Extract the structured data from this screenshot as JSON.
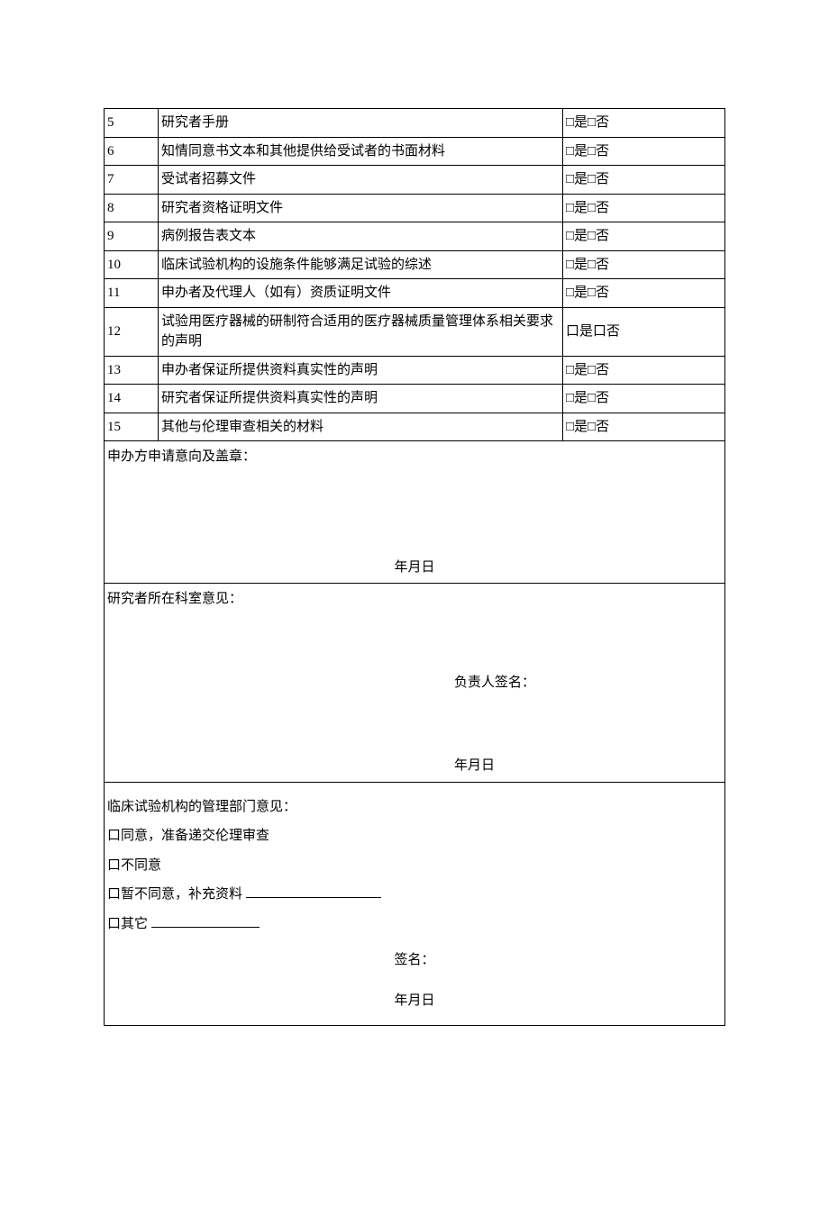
{
  "rows": [
    {
      "num": "5",
      "desc": "研究者手册",
      "check": "□是□否"
    },
    {
      "num": "6",
      "desc": "知情同意书文本和其他提供给受试者的书面材料",
      "check": "□是□否"
    },
    {
      "num": "7",
      "desc": "受试者招募文件",
      "check": "□是□否"
    },
    {
      "num": "8",
      "desc": "研究者资格证明文件",
      "check": "□是□否"
    },
    {
      "num": "9",
      "desc": "病例报告表文本",
      "check": "□是□否"
    },
    {
      "num": "10",
      "desc": "临床试验机构的设施条件能够满足试验的综述",
      "check": "□是□否"
    },
    {
      "num": "11",
      "desc": "申办者及代理人（如有）资质证明文件",
      "check": "□是□否"
    },
    {
      "num": "12",
      "desc": "试验用医疗器械的研制符合适用的医疗器械质量管理体系相关要求的声明",
      "check": "口是口否"
    },
    {
      "num": "13",
      "desc": "申办者保证所提供资料真实性的声明",
      "check": "□是□否"
    },
    {
      "num": "14",
      "desc": "研究者保证所提供资料真实性的声明",
      "check": "□是□否"
    },
    {
      "num": "15",
      "desc": "其他与伦理审查相关的材料",
      "check": "□是□否"
    }
  ],
  "section1": {
    "title": "申办方申请意向及盖章：",
    "date": "年月日"
  },
  "section2": {
    "title": "研究者所在科室意见：",
    "signature_label": "负责人签名：",
    "date": "年月日"
  },
  "section3": {
    "title": "临床试验机构的管理部门意见：",
    "opt1": "口同意，准备递交伦理审查",
    "opt2": "口不同意",
    "opt3_prefix": "口暂不同意，补充资料 ",
    "opt4_prefix": "口其它 ",
    "signature_label": "签名：",
    "date": "年月日"
  }
}
